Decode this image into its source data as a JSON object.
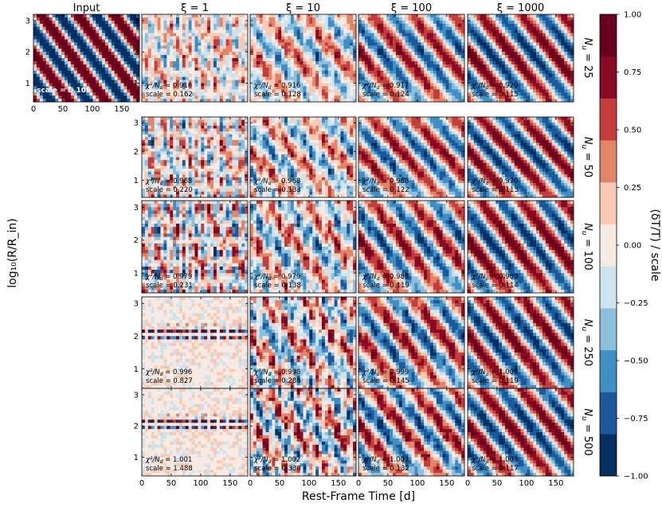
{
  "chart_data": {
    "type": "heatmap",
    "description_free": true,
    "input_title": "Input",
    "input_scale": "scale = 0.100",
    "column_titles": [
      "ξ = 1",
      "ξ = 10",
      "ξ = 100",
      "ξ = 1000"
    ],
    "row_labels": [
      "N_u = 25",
      "N_u = 50",
      "N_u = 100",
      "N_u = 250",
      "N_u = 500"
    ],
    "row_label_parts": [
      {
        "sym": "N",
        "sub": "u",
        "val": "= 25"
      },
      {
        "sym": "N",
        "sub": "u",
        "val": "= 50"
      },
      {
        "sym": "N",
        "sub": "u",
        "val": "= 100"
      },
      {
        "sym": "N",
        "sub": "u",
        "val": "= 250"
      },
      {
        "sym": "N",
        "sub": "u",
        "val": "= 500"
      }
    ],
    "xlabel": "Rest-Frame Time [d]",
    "ylabel": "log₁₀(R/R_in)",
    "colorbar_label": "(δT/T) / scale",
    "x_ticks": [
      "0",
      "50",
      "100",
      "150"
    ],
    "x_range": [
      0,
      180
    ],
    "y_ticks": [
      "1",
      "2",
      "3"
    ],
    "y_range": [
      0.4,
      3.2
    ],
    "colorbar_ticks": [
      "1.00",
      "0.75",
      "0.50",
      "0.25",
      "0.00",
      "−0.25",
      "−0.50",
      "−0.75",
      "−1.00"
    ],
    "colorbar_range": [
      -1,
      1
    ],
    "colors": [
      "#053061",
      "#1a5a9b",
      "#3f8ec4",
      "#8bbfdc",
      "#cde3ee",
      "#f6eae3",
      "#f9cab1",
      "#e38468",
      "#c43c3c",
      "#880a24",
      "#67001f"
    ],
    "chi_label": "χ²/N",
    "chi_sub": "d",
    "panels": [
      [
        {
          "chi2": "= 0.916",
          "scale": "scale = 0.162"
        },
        {
          "chi2": "= 0.916",
          "scale": "scale = 0.128"
        },
        {
          "chi2": "= 0.917",
          "scale": "scale = 0.124"
        },
        {
          "chi2": "= 0.920",
          "scale": "scale = 0.115"
        }
      ],
      [
        {
          "chi2": "= 0.968",
          "scale": "scale = 0.220"
        },
        {
          "chi2": "= 0.968",
          "scale": "scale = 0.133"
        },
        {
          "chi2": "= 0.968",
          "scale": "scale = 0.122"
        },
        {
          "chi2": "= 0.970",
          "scale": "scale = 0.113"
        }
      ],
      [
        {
          "chi2": "= 0.979",
          "scale": "scale = 0.231"
        },
        {
          "chi2": "= 0.979",
          "scale": "scale = 0.138"
        },
        {
          "chi2": "= 0.980",
          "scale": "scale = 0.119"
        },
        {
          "chi2": "= 0.980",
          "scale": "scale = 0.114"
        }
      ],
      [
        {
          "chi2": "= 0.996",
          "scale": "scale = 0.827"
        },
        {
          "chi2": "= 0.998",
          "scale": "scale = 0.286"
        },
        {
          "chi2": "= 0.999",
          "scale": "scale = 0.145"
        },
        {
          "chi2": "= 1.000",
          "scale": "scale = 0.119"
        }
      ],
      [
        {
          "chi2": "= 1.001",
          "scale": "scale = 1.488"
        },
        {
          "chi2": "= 1.002",
          "scale": "scale = 0.330"
        },
        {
          "chi2": "= 1.003",
          "scale": "scale = 0.132"
        },
        {
          "chi2": "= 1.003",
          "scale": "scale = 0.117"
        }
      ]
    ]
  }
}
